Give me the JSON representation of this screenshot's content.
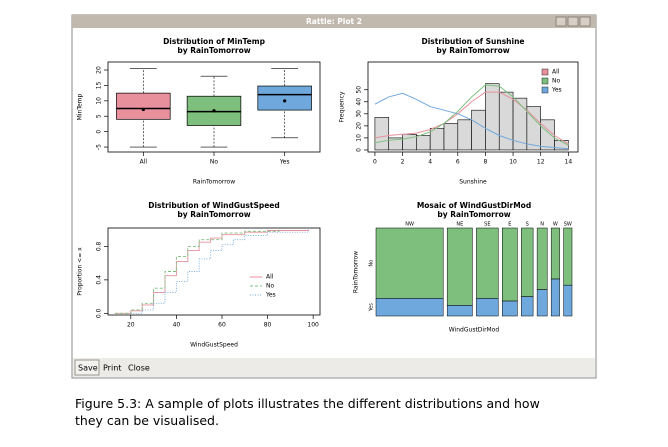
{
  "window": {
    "title": "Rattle: Plot 2",
    "buttons": [
      "Save",
      "Print",
      "Close"
    ]
  },
  "caption": [
    "Figure 5.3: A sample of plots illustrates the different distributions and how",
    "they can be visualised."
  ],
  "chart_data": [
    {
      "type": "box",
      "title": "Distribution of MinTemp",
      "subtitle": "by RainTomorrow",
      "x_label": "RainTomorrow",
      "y_label": "MinTemp",
      "categories": [
        "All",
        "No",
        "Yes"
      ],
      "colors": [
        "#e8909c",
        "#7ebf7e",
        "#6fa8dc"
      ],
      "min": [
        -5,
        -5,
        -2
      ],
      "q1": [
        4,
        2,
        7
      ],
      "median": [
        7.5,
        6.5,
        12
      ],
      "q3": [
        12.5,
        11.5,
        14.8
      ],
      "max": [
        20.5,
        18,
        20.5
      ],
      "mean": [
        7.2,
        6.8,
        10
      ],
      "ylim": [
        -6.6,
        22.6
      ],
      "yticks": [
        -5,
        0,
        5,
        10,
        15,
        20
      ]
    },
    {
      "type": "histogram",
      "title": "Distribution of Sunshine",
      "subtitle": "by RainTomorrow",
      "x_label": "Sunshine",
      "y_label": "Frequency",
      "bins": [
        0,
        1,
        2,
        3,
        4,
        5,
        6,
        7,
        8,
        9,
        10,
        11,
        12,
        13,
        14
      ],
      "counts": [
        27,
        10,
        13,
        12,
        18,
        22,
        25,
        33,
        55,
        48,
        43,
        36,
        25,
        8
      ],
      "color": "#d9d9d9",
      "x": [
        0,
        1,
        2,
        3,
        4,
        5,
        6,
        7,
        8,
        9,
        10,
        11,
        12,
        13,
        14
      ],
      "series": [
        {
          "name": "All",
          "color": "#e8909c",
          "values": [
            10,
            12,
            13,
            14,
            17,
            22,
            30,
            40,
            48,
            48,
            42,
            33,
            22,
            12,
            5
          ]
        },
        {
          "name": "No",
          "color": "#7ebf7e",
          "values": [
            6,
            8,
            9,
            11,
            15,
            22,
            32,
            44,
            54,
            53,
            44,
            32,
            20,
            10,
            4
          ]
        },
        {
          "name": "Yes",
          "color": "#6fa8dc",
          "values": [
            38,
            44,
            47,
            42,
            36,
            33,
            30,
            25,
            18,
            12,
            8,
            5,
            3,
            2,
            1
          ]
        }
      ],
      "legend": "top-right",
      "xlim": [
        -0.5,
        14.7
      ],
      "xticks": [
        0,
        2,
        4,
        6,
        8,
        10,
        12,
        14
      ],
      "ylim": [
        -1.7,
        73
      ],
      "yticks": [
        0,
        10,
        20,
        30,
        40,
        50
      ]
    },
    {
      "type": "ecdf",
      "title": "Distribution of WindGustSpeed",
      "subtitle": "by RainTomorrow",
      "x_label": "WindGustSpeed",
      "y_label": "Proportion <= x",
      "series": [
        {
          "name": "All",
          "color": "#e8909c",
          "dash": "solid",
          "x": [
            13,
            20,
            25,
            30,
            35,
            40,
            45,
            50,
            55,
            60,
            70,
            80,
            98
          ],
          "values": [
            0,
            0.03,
            0.1,
            0.25,
            0.45,
            0.62,
            0.75,
            0.85,
            0.9,
            0.94,
            0.97,
            0.99,
            1
          ]
        },
        {
          "name": "No",
          "color": "#7ebf7e",
          "dash": "dashed",
          "x": [
            13,
            20,
            25,
            30,
            35,
            40,
            45,
            50,
            60,
            70,
            85
          ],
          "values": [
            0,
            0.04,
            0.12,
            0.3,
            0.5,
            0.68,
            0.8,
            0.88,
            0.96,
            0.98,
            1
          ]
        },
        {
          "name": "Yes",
          "color": "#6fa8dc",
          "dash": "dotted",
          "x": [
            20,
            25,
            30,
            35,
            40,
            45,
            50,
            55,
            60,
            65,
            70,
            80,
            98
          ],
          "values": [
            0,
            0.04,
            0.12,
            0.25,
            0.38,
            0.5,
            0.65,
            0.75,
            0.82,
            0.88,
            0.93,
            0.97,
            1
          ]
        }
      ],
      "legend": "bottom-right",
      "xlim": [
        10,
        103
      ],
      "xticks": [
        20,
        40,
        60,
        80,
        100
      ],
      "ylim": [
        -0.02,
        1.02
      ],
      "yticks": [
        {
          "value": 0,
          "label": "0.0"
        },
        0.4,
        0.8
      ]
    },
    {
      "type": "mosaic",
      "title": "Mosaic of WindGustDirMod",
      "subtitle": "by RainTomorrow",
      "x_label": "WindGustDirMod",
      "y_label": "RainTomorrow",
      "categories": [
        "NW",
        "NE",
        "SE",
        "E",
        "S",
        "N",
        "W",
        "SW"
      ],
      "widths": [
        0.4,
        0.15,
        0.13,
        0.09,
        0.07,
        0.06,
        0.05,
        0.05
      ],
      "series": [
        {
          "name": "No",
          "color": "#7ebf7e",
          "values": [
            0.8,
            0.88,
            0.8,
            0.83,
            0.78,
            0.7,
            0.58,
            0.65
          ]
        },
        {
          "name": "Yes",
          "color": "#6fa8dc",
          "values": [
            0.2,
            0.12,
            0.2,
            0.17,
            0.22,
            0.3,
            0.42,
            0.35
          ]
        }
      ]
    }
  ]
}
